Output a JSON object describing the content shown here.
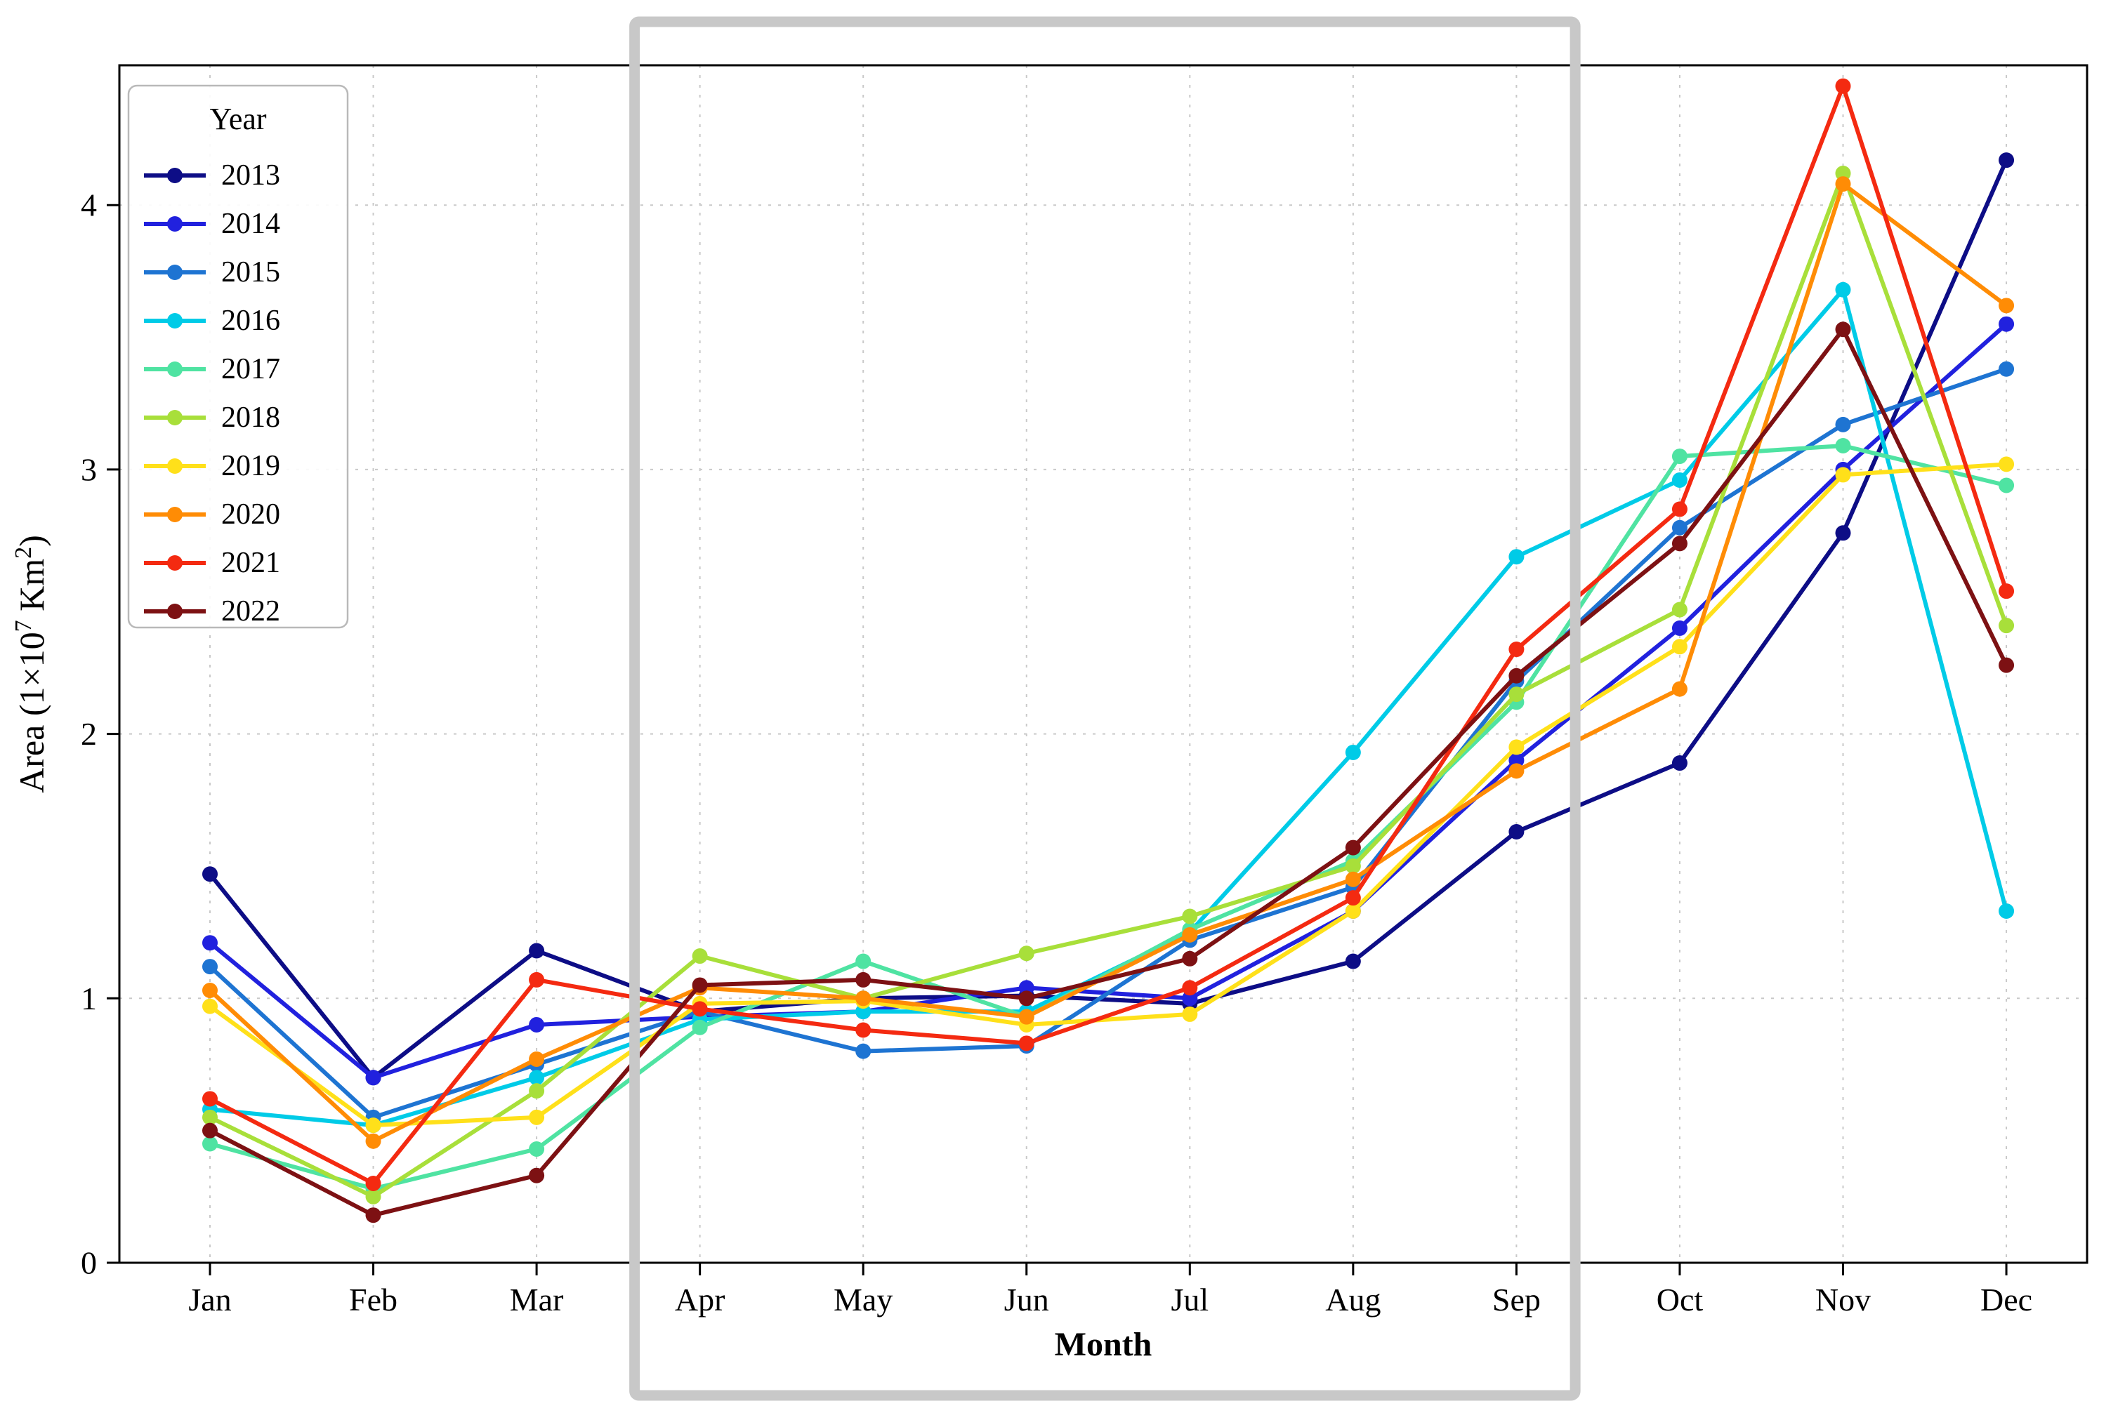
{
  "chart_data": {
    "type": "line",
    "title": "",
    "xlabel": "Month",
    "ylabel": "Area (1×10^7 Km^2)",
    "ylabel_rich": [
      [
        "Area (1×10",
        false
      ],
      [
        "7",
        true
      ],
      [
        " Km",
        false
      ],
      [
        "2",
        true
      ],
      [
        ")",
        false
      ]
    ],
    "categories": [
      "Jan",
      "Feb",
      "Mar",
      "Apr",
      "May",
      "Jun",
      "Jul",
      "Aug",
      "Sep",
      "Oct",
      "Nov",
      "Dec"
    ],
    "yticks": [
      "0",
      "1",
      "2",
      "3",
      "4"
    ],
    "ylim": [
      0,
      4.53
    ],
    "grid": true,
    "legend": {
      "title": "Year",
      "position": "upper-left"
    },
    "series": [
      {
        "name": "2013",
        "color": "#0d0d86",
        "values": [
          1.47,
          0.7,
          1.18,
          0.95,
          1.0,
          1.01,
          0.98,
          1.14,
          1.63,
          1.89,
          2.76,
          4.17
        ]
      },
      {
        "name": "2014",
        "color": "#2121de",
        "values": [
          1.21,
          0.7,
          0.9,
          0.93,
          0.95,
          1.04,
          1.0,
          1.33,
          1.9,
          2.4,
          3.0,
          3.55
        ]
      },
      {
        "name": "2015",
        "color": "#1e74d2",
        "values": [
          1.12,
          0.55,
          0.75,
          0.95,
          0.8,
          0.82,
          1.22,
          1.42,
          2.2,
          2.78,
          3.17,
          3.38
        ]
      },
      {
        "name": "2016",
        "color": "#00cbe7",
        "values": [
          0.58,
          0.52,
          0.7,
          0.92,
          0.95,
          0.95,
          1.25,
          1.93,
          2.67,
          2.96,
          3.68,
          1.33
        ]
      },
      {
        "name": "2017",
        "color": "#4fe3a2",
        "values": [
          0.45,
          0.28,
          0.43,
          0.89,
          1.14,
          0.93,
          1.26,
          1.52,
          2.12,
          3.05,
          3.09,
          2.94
        ]
      },
      {
        "name": "2018",
        "color": "#a8df3a",
        "values": [
          0.55,
          0.25,
          0.65,
          1.16,
          1.0,
          1.17,
          1.31,
          1.5,
          2.15,
          2.47,
          4.12,
          2.41
        ]
      },
      {
        "name": "2019",
        "color": "#ffe01a",
        "values": [
          0.97,
          0.52,
          0.55,
          0.98,
          0.99,
          0.9,
          0.94,
          1.33,
          1.95,
          2.33,
          2.98,
          3.02
        ]
      },
      {
        "name": "2020",
        "color": "#ff8c05",
        "values": [
          1.03,
          0.46,
          0.77,
          1.04,
          1.0,
          0.93,
          1.24,
          1.45,
          1.86,
          2.17,
          4.08,
          3.62
        ]
      },
      {
        "name": "2021",
        "color": "#f42a11",
        "values": [
          0.62,
          0.3,
          1.07,
          0.96,
          0.88,
          0.83,
          1.04,
          1.38,
          2.32,
          2.85,
          4.45,
          2.54
        ]
      },
      {
        "name": "2022",
        "color": "#7d1113",
        "values": [
          0.5,
          0.18,
          0.33,
          1.05,
          1.07,
          1.0,
          1.15,
          1.57,
          2.22,
          2.72,
          3.53,
          2.26
        ]
      }
    ],
    "annotations": [
      {
        "type": "rect-outline",
        "label": "highlighted-months",
        "from_month": "Apr",
        "to_month": "Sep",
        "color": "#c8c8c8"
      }
    ]
  }
}
